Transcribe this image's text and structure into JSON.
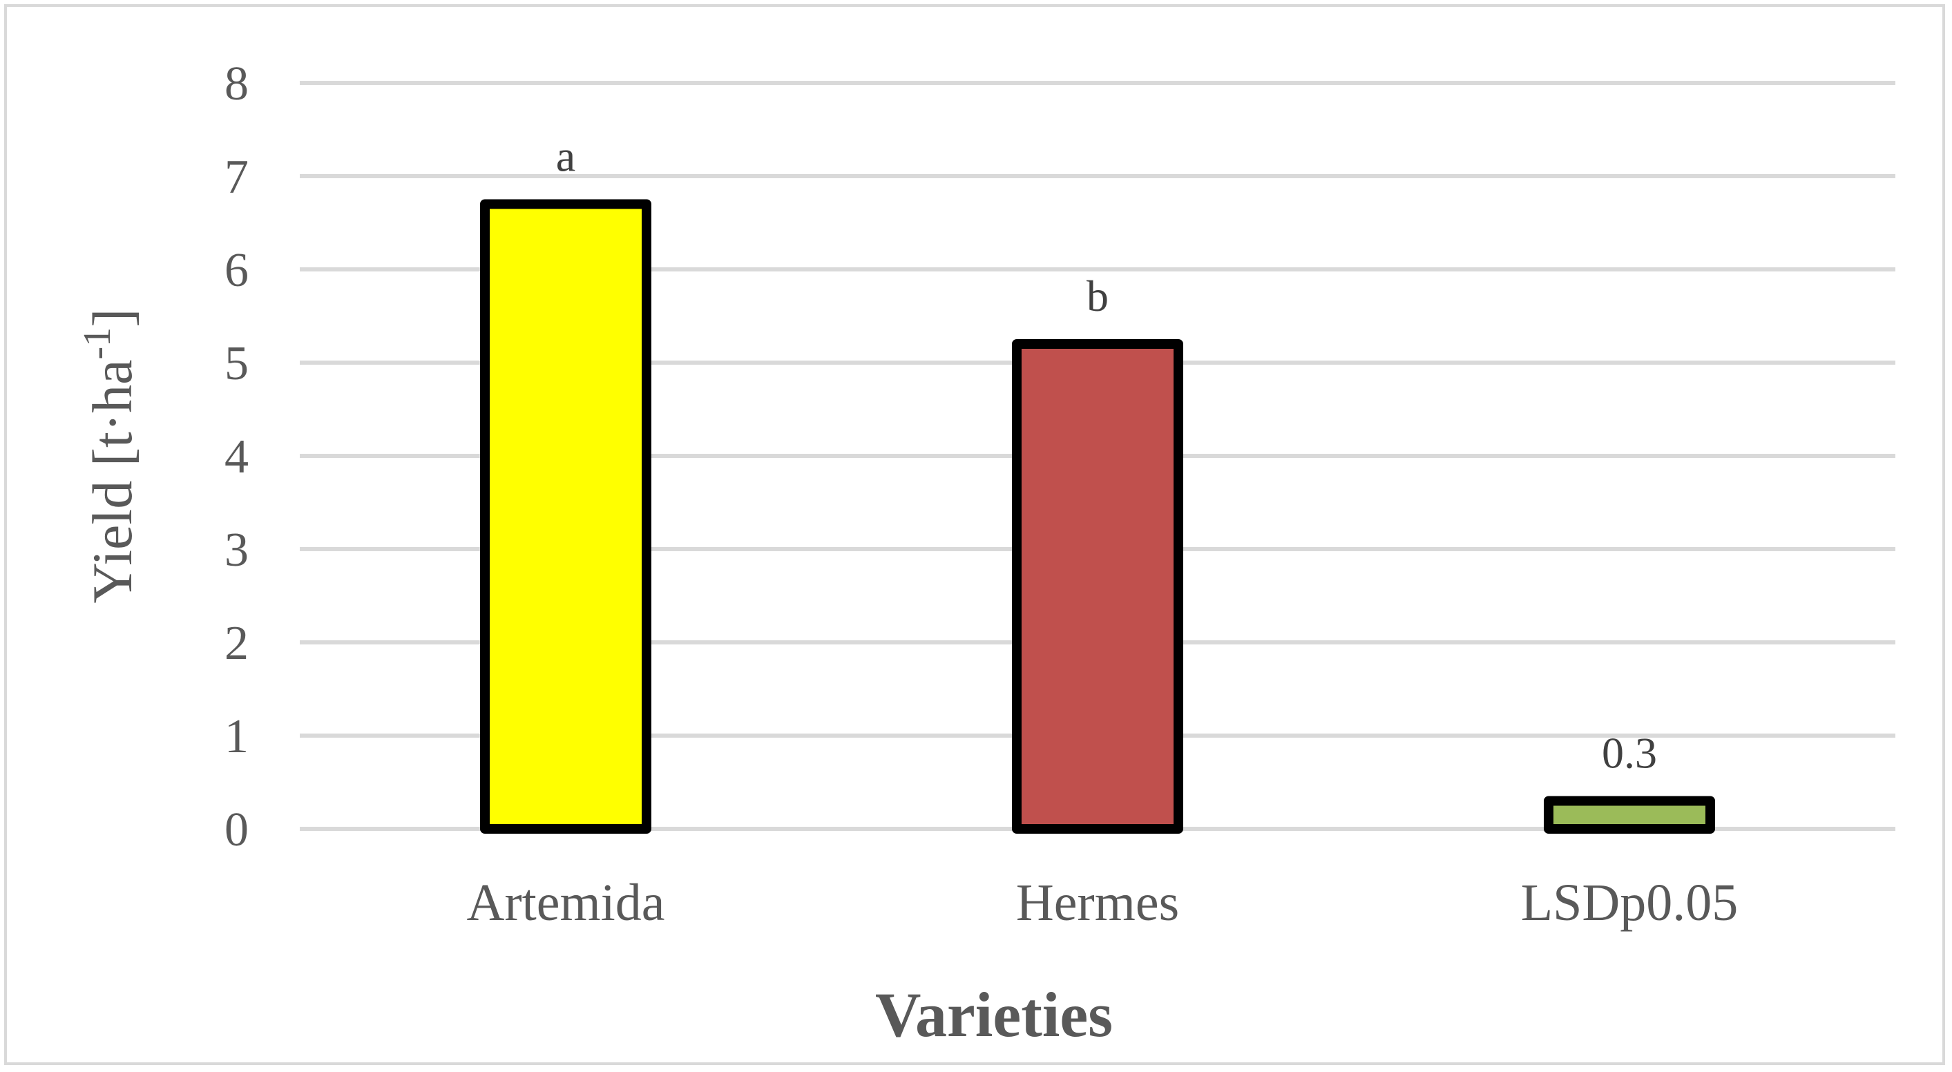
{
  "chart_data": {
    "type": "bar",
    "title": "",
    "xlabel": "Varieties",
    "ylabel": {
      "main": "Yield [t·ha",
      "superscript": "-1",
      "close": "]"
    },
    "categories": [
      "Artemida",
      "Hermes",
      "LSDp0.05"
    ],
    "values": [
      6.7,
      5.2,
      0.3
    ],
    "data_labels": [
      "a",
      "b",
      "0.3"
    ],
    "bar_colors": [
      "#ffff00",
      "#c0504d",
      "#9bbb59"
    ],
    "bar_outline_color": "#000000",
    "gridline_color": "#d9d9d9",
    "ylim": [
      0,
      8
    ],
    "yticks": [
      0,
      1,
      2,
      3,
      4,
      5,
      6,
      7,
      8
    ],
    "grid": true,
    "legend": "none"
  }
}
